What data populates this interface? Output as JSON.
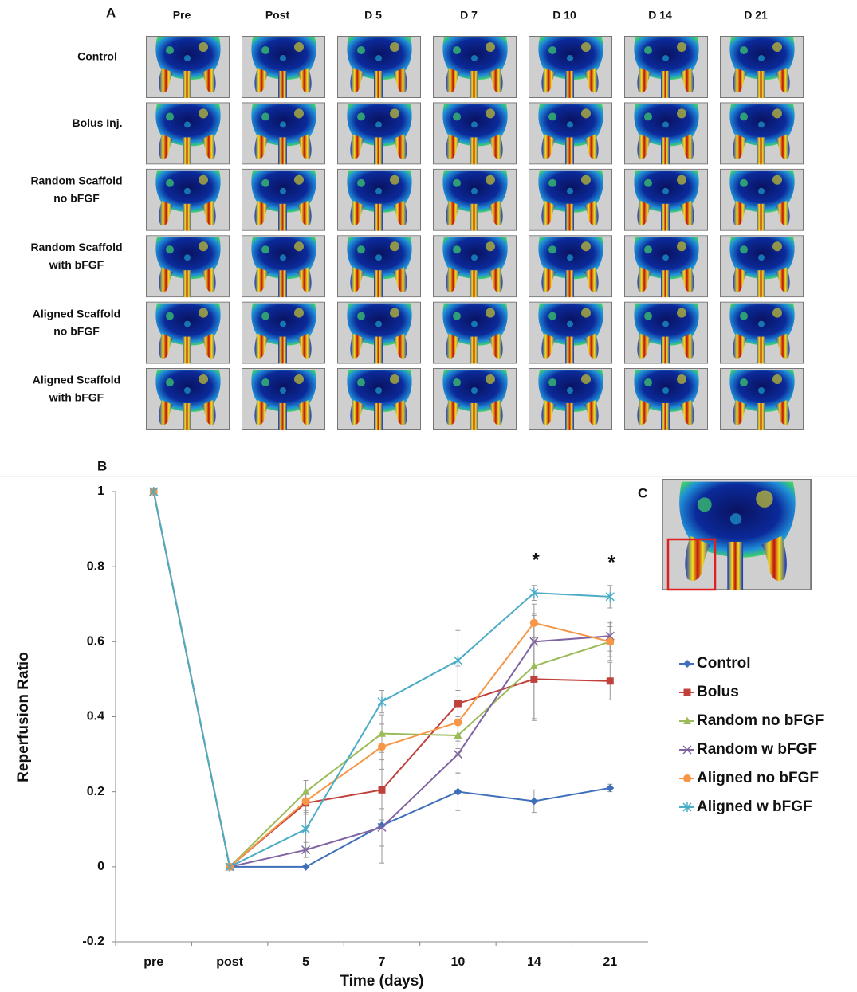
{
  "panel_a": {
    "label": "A",
    "columns": [
      "Pre",
      "Post",
      "D 5",
      "D 7",
      "D 10",
      "D 14",
      "D 21"
    ],
    "rows": [
      [
        "Control"
      ],
      [
        "Bolus Inj."
      ],
      [
        "Random Scaffold",
        "no bFGF"
      ],
      [
        "Random Scaffold",
        "with bFGF"
      ],
      [
        "Aligned Scaffold",
        "no bFGF"
      ],
      [
        "Aligned Scaffold",
        "with bFGF"
      ]
    ]
  },
  "chart_data": {
    "type": "line",
    "panel_label": "B",
    "x_label": "Time (days)",
    "y_label": "Reperfusion Ratio",
    "categories": [
      "pre",
      "post",
      "5",
      "7",
      "10",
      "14",
      "21"
    ],
    "ylim": [
      -0.2,
      1
    ],
    "yticks": [
      -0.2,
      0,
      0.2,
      0.4,
      0.6,
      0.8,
      1
    ],
    "grid": false,
    "legend": "right",
    "annotations": [
      "*",
      "*"
    ],
    "series": [
      {
        "name": "Control",
        "color": "#3f6fba",
        "marker": "diamond",
        "values": [
          1,
          0,
          0,
          0.11,
          0.2,
          0.175,
          0.21
        ],
        "errors": [
          null,
          null,
          null,
          0.1,
          0.05,
          0.03,
          0.01
        ]
      },
      {
        "name": "Bolus",
        "color": "#c0413c",
        "marker": "square",
        "values": [
          1,
          0,
          0.17,
          0.205,
          0.435,
          0.5,
          0.495
        ],
        "errors": [
          null,
          null,
          0.03,
          0.08,
          0.1,
          0.11,
          0.05
        ]
      },
      {
        "name": "Random no bFGF",
        "color": "#9bbb59",
        "marker": "triangle",
        "values": [
          1,
          0,
          0.2,
          0.355,
          0.35,
          0.535,
          0.6
        ],
        "errors": [
          null,
          null,
          0.03,
          0.05,
          0.05,
          0.14,
          0.05
        ]
      },
      {
        "name": "Random w bFGF",
        "color": "#8064a2",
        "marker": "x",
        "values": [
          1,
          0,
          0.045,
          0.105,
          0.3,
          0.6,
          0.615
        ],
        "errors": [
          null,
          null,
          0.02,
          0.05,
          0.05,
          0.07,
          0.04
        ]
      },
      {
        "name": "Aligned no bFGF",
        "color": "#f79646",
        "marker": "circle",
        "values": [
          1,
          0,
          0.175,
          0.32,
          0.385,
          0.65,
          0.6
        ],
        "errors": [
          null,
          null,
          0.03,
          0.06,
          0.07,
          0.05,
          0.04
        ]
      },
      {
        "name": "Aligned w bFGF",
        "color": "#4bacc6",
        "marker": "star",
        "values": [
          1,
          0,
          0.1,
          0.44,
          0.55,
          0.73,
          0.72
        ],
        "errors": [
          null,
          null,
          0.05,
          0.03,
          0.08,
          0.02,
          0.03
        ]
      }
    ]
  },
  "panel_c": {
    "label": "C"
  }
}
